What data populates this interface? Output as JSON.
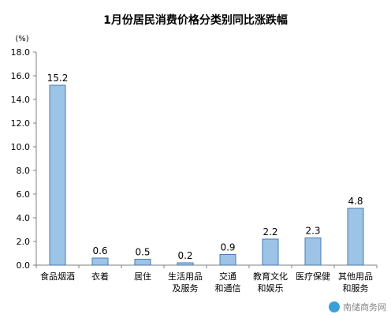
{
  "chart_data": {
    "type": "bar",
    "title": "1月份居民消费价格分类别同比涨跌幅",
    "yunit": "(%)",
    "categories": [
      [
        "食品烟酒"
      ],
      [
        "衣着"
      ],
      [
        "居住"
      ],
      [
        "生活用品",
        "及服务"
      ],
      [
        "交通",
        "和通信"
      ],
      [
        "教育文化",
        "和娱乐"
      ],
      [
        "医疗保健"
      ],
      [
        "其他用品",
        "和服务"
      ]
    ],
    "values": [
      15.2,
      0.6,
      0.5,
      0.2,
      0.9,
      2.2,
      2.3,
      4.8
    ],
    "data_labels": [
      "15.2",
      "0.6",
      "0.5",
      "0.2",
      "0.9",
      "2.2",
      "2.3",
      "4.8"
    ],
    "ylim": [
      0,
      18
    ],
    "yticks": [
      0,
      2,
      4,
      6,
      8,
      10,
      12,
      14,
      16,
      18
    ],
    "ytick_labels": [
      "0.0",
      "2.0",
      "4.0",
      "6.0",
      "8.0",
      "10.0",
      "12.0",
      "14.0",
      "16.0",
      "18.0"
    ],
    "grid": false,
    "colors": {
      "bar_fill": "#9DC3E6",
      "bar_stroke": "#4A7BAF",
      "axis": "#808080",
      "text": "#000000"
    }
  },
  "watermark": {
    "text": "南储商务网"
  }
}
